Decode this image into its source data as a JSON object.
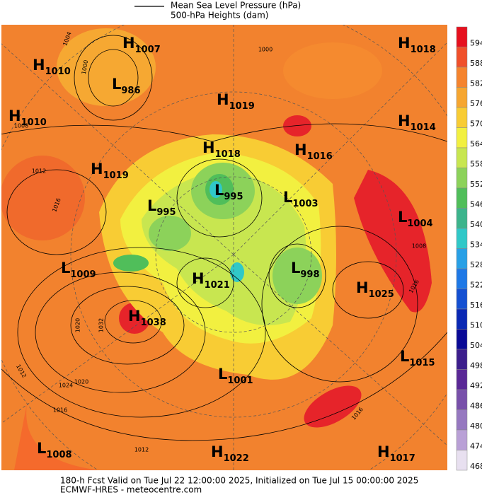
{
  "header": {
    "line1": "Mean Sea Level Pressure (hPa)",
    "line2": "500-hPa Heights (dam)"
  },
  "centers": [
    {
      "letter": "H",
      "value": "1007"
    },
    {
      "letter": "H",
      "value": "1010"
    },
    {
      "letter": "L",
      "value": "986"
    },
    {
      "letter": "H",
      "value": "1010"
    },
    {
      "letter": "H",
      "value": "1019"
    },
    {
      "letter": "H",
      "value": "1018"
    },
    {
      "letter": "H",
      "value": "1016"
    },
    {
      "letter": "H",
      "value": "1018"
    },
    {
      "letter": "H",
      "value": "1014"
    },
    {
      "letter": "H",
      "value": "1019"
    },
    {
      "letter": "L",
      "value": "995"
    },
    {
      "letter": "L",
      "value": "1003"
    },
    {
      "letter": "L",
      "value": "995"
    },
    {
      "letter": "L",
      "value": "1004"
    },
    {
      "letter": "L",
      "value": "1009"
    },
    {
      "letter": "H",
      "value": "1021"
    },
    {
      "letter": "L",
      "value": "998"
    },
    {
      "letter": "H",
      "value": "1025"
    },
    {
      "letter": "H",
      "value": "1038"
    },
    {
      "letter": "L",
      "value": "1015"
    },
    {
      "letter": "L",
      "value": "1001"
    },
    {
      "letter": "L",
      "value": "1008"
    },
    {
      "letter": "H",
      "value": "1022"
    },
    {
      "letter": "H",
      "value": "1017"
    }
  ],
  "contour_labels": [
    "1004",
    "1000",
    "1000",
    "1008",
    "1012",
    "1016",
    "1020",
    "1024",
    "1032",
    "1016",
    "1012",
    "1020",
    "1016",
    "1012",
    "1008",
    "1016"
  ],
  "colorbar": {
    "labels": [
      594,
      588,
      582,
      576,
      570,
      564,
      558,
      552,
      546,
      540,
      534,
      528,
      522,
      516,
      510,
      504,
      498,
      492,
      486,
      480,
      474,
      468
    ],
    "colors": [
      "#e6101e",
      "#f0502a",
      "#f5842e",
      "#f6a630",
      "#f8cc34",
      "#f2f040",
      "#c8e650",
      "#8cd25a",
      "#50be5a",
      "#3cb48c",
      "#30c8c8",
      "#28a0e6",
      "#1e78e6",
      "#1450d2",
      "#0a28b4",
      "#0a0a96",
      "#3c1e8c",
      "#5a2896",
      "#7850aa",
      "#9678c0",
      "#b9a0d6",
      "#e8e0f0"
    ]
  },
  "footer": {
    "line1": "180-h Fcst Valid on Tue Jul 22 12:00:00 2025, Initialized on Tue Jul 15 00:00:00 2025",
    "line2": "ECMWF-HRES  - meteocentre.com"
  }
}
